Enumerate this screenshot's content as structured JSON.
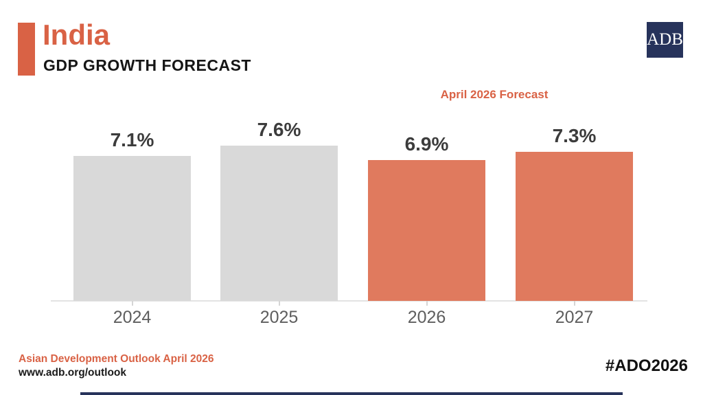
{
  "colors": {
    "accent_orange": "#D96245",
    "bar_forecast_orange": "#E07A5E",
    "bar_actual_gray": "#D9D9D9",
    "logo_navy": "#27335B",
    "value_label_gray": "#3C3C3C",
    "axis_label_gray": "#5E5E5E"
  },
  "header": {
    "title": "India",
    "subtitle": "GDP GROWTH FORECAST"
  },
  "logo": {
    "text": "ADB"
  },
  "chart_data": {
    "type": "bar",
    "title": "GDP GROWTH FORECAST",
    "annotation": "April 2026 Forecast",
    "categories": [
      "2024",
      "2025",
      "2026",
      "2027"
    ],
    "values": [
      7.1,
      7.6,
      6.9,
      7.3
    ],
    "value_labels": [
      "7.1%",
      "7.6%",
      "6.9%",
      "7.3%"
    ],
    "forecast_start_index": 2,
    "unit": "percent",
    "ylim": [
      0,
      8
    ],
    "grid": false,
    "legend_position": "top-right"
  },
  "footer": {
    "source": "Asian Development Outlook April 2026",
    "url": "www.adb.org/outlook",
    "hashtag": "#ADO2026"
  }
}
